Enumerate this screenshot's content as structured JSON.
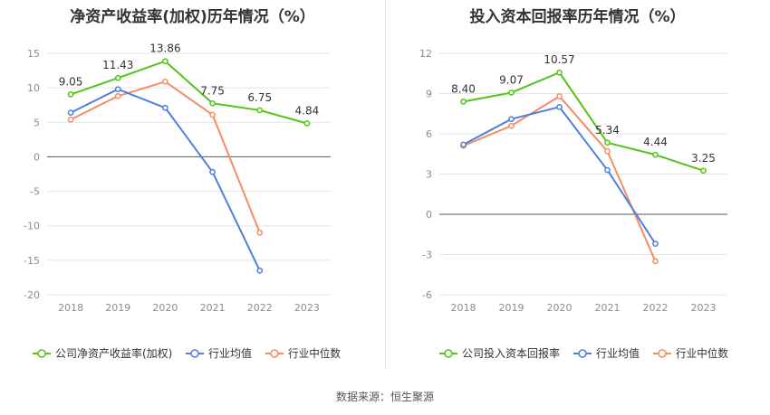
{
  "charts": [
    {
      "title": "净资产收益率(加权)历年情况（%）",
      "chart_data": {
        "type": "line",
        "categories": [
          "2018",
          "2019",
          "2020",
          "2021",
          "2022",
          "2023"
        ],
        "ylim": [
          -20,
          15
        ],
        "yticks": [
          15,
          10,
          5,
          0,
          -5,
          -10,
          -15,
          -20
        ],
        "grid": true,
        "legend_position": "bottom-left",
        "series": [
          {
            "name": "公司净资产收益率(加权)",
            "color": "#52c41a",
            "values": [
              9.05,
              11.43,
              13.86,
              7.75,
              6.75,
              4.84
            ],
            "labels": [
              "9.05",
              "11.43",
              "13.86",
              "7.75",
              "6.75",
              "4.84"
            ]
          },
          {
            "name": "行业均值",
            "color": "#4e7fe0",
            "values": [
              6.4,
              9.8,
              7.1,
              -2.2,
              -16.5,
              null
            ]
          },
          {
            "name": "行业中位数",
            "color": "#f58c64",
            "values": [
              5.4,
              8.8,
              10.9,
              6.1,
              -11.0,
              null
            ]
          }
        ]
      }
    },
    {
      "title": "投入资本回报率历年情况（%）",
      "chart_data": {
        "type": "line",
        "categories": [
          "2018",
          "2019",
          "2020",
          "2021",
          "2022",
          "2023"
        ],
        "ylim": [
          -6,
          12
        ],
        "yticks": [
          12,
          9,
          6,
          3,
          0,
          -3,
          -6
        ],
        "grid": true,
        "legend_position": "bottom-left",
        "series": [
          {
            "name": "公司投入资本回报率",
            "color": "#52c41a",
            "values": [
              8.4,
              9.07,
              10.57,
              5.34,
              4.44,
              3.25
            ],
            "labels": [
              "8.40",
              "9.07",
              "10.57",
              "5.34",
              "4.44",
              "3.25"
            ]
          },
          {
            "name": "行业均值",
            "color": "#4e7fe0",
            "values": [
              5.2,
              7.1,
              8.0,
              3.3,
              -2.2,
              null
            ]
          },
          {
            "name": "行业中位数",
            "color": "#f58c64",
            "values": [
              5.1,
              6.6,
              8.8,
              4.7,
              -3.5,
              null
            ]
          }
        ]
      }
    }
  ],
  "source": "数据来源：恒生聚源"
}
